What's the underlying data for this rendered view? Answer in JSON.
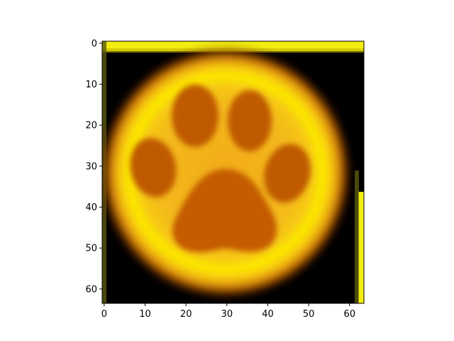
{
  "image": {
    "subject": "glowing-paw-print-icon",
    "palette": {
      "background": "#000000",
      "glow_yellow": "#fdf000",
      "inner_orange": "#e88a10",
      "pad_brown": "#c05a00",
      "border_yellow": "#f4ee10"
    },
    "pixel_grid": [
      64,
      64
    ]
  },
  "axes": {
    "x": {
      "ticks": [
        {
          "value": 0,
          "label": "0"
        },
        {
          "value": 10,
          "label": "10"
        },
        {
          "value": 20,
          "label": "20"
        },
        {
          "value": 30,
          "label": "30"
        },
        {
          "value": 40,
          "label": "40"
        },
        {
          "value": 50,
          "label": "50"
        },
        {
          "value": 60,
          "label": "60"
        }
      ],
      "range": [
        -0.5,
        63.5
      ]
    },
    "y": {
      "ticks": [
        {
          "value": 0,
          "label": "0"
        },
        {
          "value": 10,
          "label": "10"
        },
        {
          "value": 20,
          "label": "20"
        },
        {
          "value": 30,
          "label": "30"
        },
        {
          "value": 40,
          "label": "40"
        },
        {
          "value": 50,
          "label": "50"
        },
        {
          "value": 60,
          "label": "60"
        }
      ],
      "range": [
        -0.5,
        63.5
      ],
      "inverted": true
    }
  }
}
